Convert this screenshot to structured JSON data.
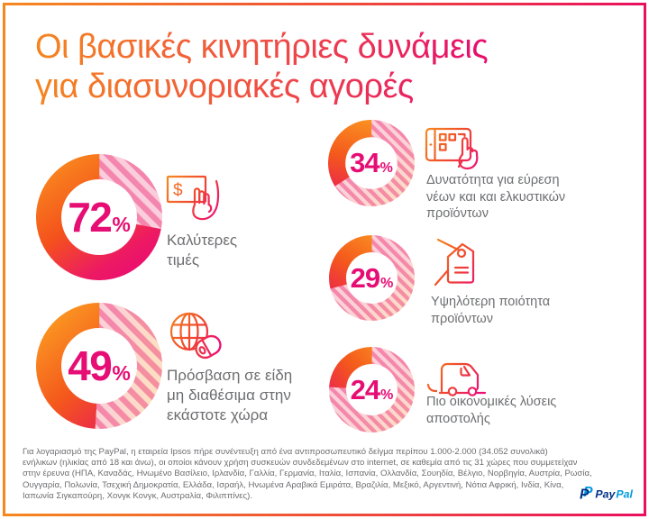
{
  "header": {
    "title_line1": "Οι βασικές κινητήριες δυνάμεις",
    "title_line2": "για διασυνοριακές αγορές"
  },
  "stats": [
    {
      "value": "72",
      "unit": "%",
      "label": "Καλύτερες\nτιμές",
      "icon": "banknote-hand"
    },
    {
      "value": "49",
      "unit": "%",
      "label": "Πρόσβαση σε είδη\nμη διαθέσιμα στην\nεκάστοτε χώρα",
      "icon": "globe-mouse"
    },
    {
      "value": "34",
      "unit": "%",
      "label": "Δυνατότητα για εύρεση\nνέων και και ελκυστικών\nπροϊόντων",
      "icon": "tablet-hand"
    },
    {
      "value": "29",
      "unit": "%",
      "label": "Υψηλότερη ποιότητα\nπροϊόντων",
      "icon": "price-tag"
    },
    {
      "value": "24",
      "unit": "%",
      "label": "Πιο οικονομικές λύσεις\nαποστολής",
      "icon": "delivery-van"
    }
  ],
  "icons": {
    "currency_symbol": "$"
  },
  "footer": {
    "source_note": "Για λογαριασμό της PayPal, η εταιρεία Ipsos πήρε συνέντευξη από ένα αντιπροσωπευτικό δείγμα περίπου 1.000-2.000 (34.052 συνολικά)\nενήλικων (ηλικίας από 18 και άνω), οι οποίοι κάνουν χρήση συσκευών συνδεδεμένων στο internet, σε καθεμία από τις 31 χώρες που συμμετείχαν\nστην έρευνα (ΗΠΑ, Καναδάς, Ηνωμένο Βασίλειο, Ιρλανδία, Γαλλία, Γερμανία, Ιταλία, Ισπανία, Ολλανδία, Σουηδία, Βέλγιο, Νορβηγία, Αυστρία, Ρωσία,\nΟυγγαρία, Πολωνία, Τσεχική Δημοκρατία, Ελλάδα, Ισραήλ, Ηνωμένα Αραβικά Εμιράτα, Βραζιλία, Μεξικό, Αργεντινή, Νότια Αφρική, Ινδία, Κίνα,\nΙαπωνία Σιγκαπούρη, Χονγκ Κονγκ, Αυστραλία, Φιλιππίνες)."
  },
  "brand": {
    "monogram": "P",
    "name_part1": "Pay",
    "name_part2": "Pal"
  },
  "colors": {
    "accent_orange": "#F5821F",
    "accent_magenta": "#EA0C73",
    "percent_text": "#E60D74",
    "label_gray": "#6D6E71",
    "stripe_pink": "#F2679C",
    "paypal_navy": "#003087",
    "paypal_blue": "#009CDE"
  },
  "chart_data": {
    "type": "pie",
    "variant": "donut-set",
    "title": "Οι βασικές κινητήριες δυνάμεις για διασυνοριακές αγορές",
    "categories": [
      "Καλύτερες τιμές",
      "Πρόσβαση σε είδη μη διαθέσιμα στην εκάστοτε χώρα",
      "Δυνατότητα για εύρεση νέων και και ελκυστικών προϊόντων",
      "Υψηλότερη ποιότητα προϊόντων",
      "Πιο οικονομικές λύσεις αποστολής"
    ],
    "values": [
      72,
      49,
      34,
      29,
      24
    ],
    "unit": "%",
    "remainder_style": "diagonal-stripes",
    "legend_position": "none",
    "grid": false
  }
}
